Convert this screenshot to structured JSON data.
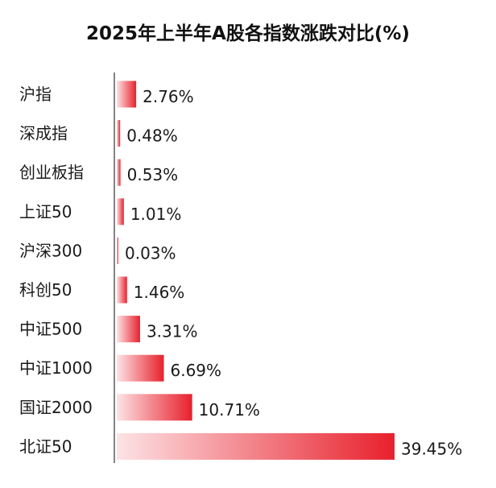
{
  "chart_data": {
    "type": "bar",
    "orientation": "horizontal",
    "title": "2025年上半年A股各指数涨跌对比(%)",
    "categories": [
      "沪指",
      "深成指",
      "创业板指",
      "上证50",
      "沪深300",
      "科创50",
      "中证500",
      "中证1000",
      "国证2000",
      "北证50"
    ],
    "values": [
      2.76,
      0.48,
      0.53,
      1.01,
      0.03,
      1.46,
      3.31,
      6.69,
      10.71,
      39.45
    ],
    "data_labels": [
      "2.76%",
      "0.48%",
      "0.53%",
      "1.01%",
      "0.03%",
      "1.46%",
      "3.31%",
      "6.69%",
      "10.71%",
      "39.45%"
    ],
    "xlim": [
      0,
      39.45
    ],
    "grid": false,
    "legend": "none",
    "colors": {
      "bar_start": "#fde3e5",
      "bar_end": "#e8202c",
      "axis": "#333333"
    }
  }
}
